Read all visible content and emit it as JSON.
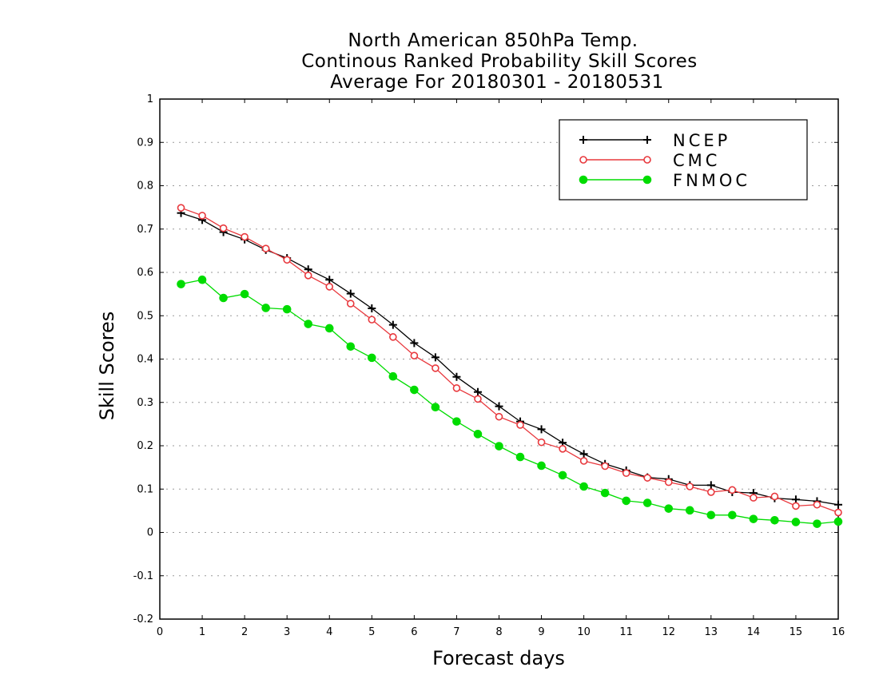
{
  "chart_data": {
    "type": "line",
    "title": [
      "North American 850hPa Temp.",
      "Continous Ranked Probability Skill Scores",
      "Average For 20180301 - 20180531"
    ],
    "xlabel": "Forecast days",
    "ylabel": "Skill Scores",
    "xlim": [
      0,
      16
    ],
    "ylim": [
      -0.2,
      1
    ],
    "x_ticks": [
      0,
      1,
      2,
      3,
      4,
      5,
      6,
      7,
      8,
      9,
      10,
      11,
      12,
      13,
      14,
      15,
      16
    ],
    "x_tick_labels": [
      "0",
      "1",
      "2",
      "3",
      "4",
      "5",
      "6",
      "7",
      "8",
      "9",
      "10",
      "11",
      "12",
      "13",
      "14",
      "15",
      "16"
    ],
    "y_ticks": [
      -0.2,
      -0.1,
      0,
      0.1,
      0.2,
      0.3,
      0.4,
      0.5,
      0.6,
      0.7,
      0.8,
      0.9,
      1
    ],
    "y_tick_labels": [
      "-0.2",
      "-0.1",
      "0",
      "0.1",
      "0.2",
      "0.3",
      "0.4",
      "0.5",
      "0.6",
      "0.7",
      "0.8",
      "0.9",
      "1"
    ],
    "grid": true,
    "legend_position": "top-right",
    "x": [
      0.5,
      1,
      1.5,
      2,
      2.5,
      3,
      3.5,
      4,
      4.5,
      5,
      5.5,
      6,
      6.5,
      7,
      7.5,
      8,
      8.5,
      9,
      9.5,
      10,
      10.5,
      11,
      11.5,
      12,
      12.5,
      13,
      13.5,
      14,
      14.5,
      15,
      15.5,
      16
    ],
    "series": [
      {
        "name": "NCEP",
        "color": "#000000",
        "marker": "plus",
        "values": [
          0.737,
          0.721,
          0.693,
          0.676,
          0.652,
          0.633,
          0.607,
          0.583,
          0.551,
          0.517,
          0.479,
          0.437,
          0.404,
          0.359,
          0.324,
          0.291,
          0.256,
          0.238,
          0.207,
          0.181,
          0.158,
          0.143,
          0.127,
          0.123,
          0.109,
          0.109,
          0.093,
          0.091,
          0.079,
          0.076,
          0.072,
          0.064
        ]
      },
      {
        "name": "CMC",
        "color": "#e8383d",
        "marker": "open-circle",
        "values": [
          0.749,
          0.731,
          0.702,
          0.682,
          0.655,
          0.629,
          0.593,
          0.567,
          0.528,
          0.491,
          0.451,
          0.408,
          0.379,
          0.333,
          0.308,
          0.267,
          0.248,
          0.208,
          0.193,
          0.165,
          0.153,
          0.137,
          0.126,
          0.116,
          0.106,
          0.093,
          0.098,
          0.08,
          0.083,
          0.061,
          0.064,
          0.046
        ]
      },
      {
        "name": "FNMOC",
        "color": "#00dc00",
        "marker": "filled-circle",
        "values": [
          0.573,
          0.583,
          0.541,
          0.55,
          0.518,
          0.515,
          0.481,
          0.471,
          0.429,
          0.403,
          0.36,
          0.329,
          0.289,
          0.256,
          0.227,
          0.199,
          0.174,
          0.154,
          0.132,
          0.106,
          0.091,
          0.073,
          0.068,
          0.055,
          0.051,
          0.04,
          0.04,
          0.031,
          0.028,
          0.024,
          0.02,
          0.025
        ]
      }
    ]
  }
}
